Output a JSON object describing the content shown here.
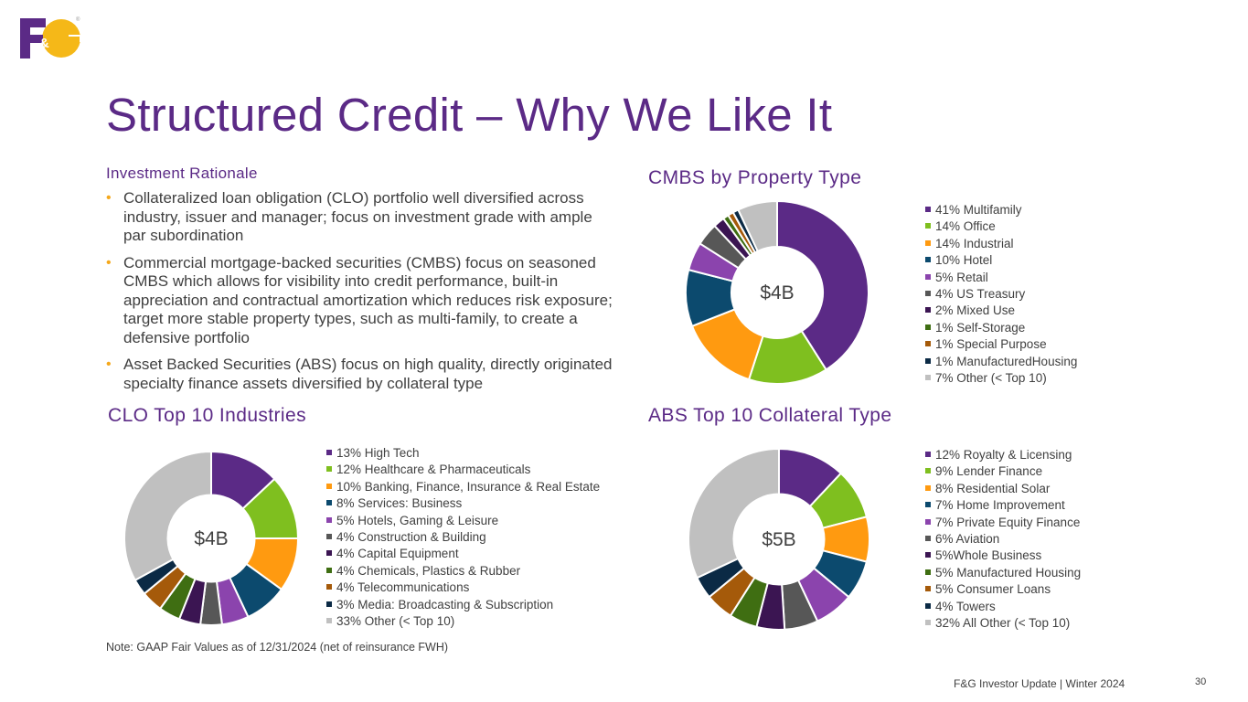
{
  "logo": {
    "text": "F&G",
    "registered": "®"
  },
  "title": "Structured Credit – Why We Like It",
  "rationale": {
    "heading": "Investment Rationale",
    "bullets": [
      "Collateralized loan obligation (CLO) portfolio well diversified across industry, issuer and manager; focus on investment grade with ample par subordination",
      "Commercial mortgage-backed securities (CMBS) focus on seasoned CMBS which allows for visibility into credit performance, built-in appreciation and contractual amortization which reduces risk exposure; target more stable property types, such as multi-family, to create a defensive portfolio",
      "Asset Backed Securities (ABS) focus on high quality, directly originated specialty finance assets diversified by collateral type"
    ]
  },
  "chart_data": [
    {
      "type": "pie",
      "title": "CMBS by Property Type",
      "center_label": "$4B",
      "legend_position": "right",
      "categories": [
        "Multifamily",
        "Office",
        "Industrial",
        "Hotel",
        "Retail",
        "US Treasury",
        "Mixed Use",
        "Self-Storage",
        "Special Purpose",
        "ManufacturedHousing",
        "Other (< Top 10)"
      ],
      "values": [
        41,
        14,
        14,
        10,
        5,
        4,
        2,
        1,
        1,
        1,
        7
      ],
      "legend_labels": [
        "41% Multifamily",
        "14% Office",
        "14% Industrial",
        "10% Hotel",
        "5% Retail",
        "4% US Treasury",
        "2% Mixed Use",
        "1% Self-Storage",
        "1% Special Purpose",
        "1% ManufacturedHousing",
        "7% Other (< Top 10)"
      ],
      "colors": [
        "#5b2a86",
        "#7fbf1f",
        "#ff9a10",
        "#0c4a6e",
        "#8b44ad",
        "#575757",
        "#3b1552",
        "#3f6e12",
        "#a55a0a",
        "#0b2a45",
        "#c0c0c0"
      ]
    },
    {
      "type": "pie",
      "title": "CLO Top 10 Industries",
      "center_label": "$4B",
      "legend_position": "right",
      "categories": [
        "High Tech",
        "Healthcare & Pharmaceuticals",
        "Banking, Finance, Insurance & Real Estate",
        "Services: Business",
        "Hotels, Gaming & Leisure",
        "Construction & Building",
        "Capital Equipment",
        "Chemicals, Plastics & Rubber",
        "Telecommunications",
        "Media: Broadcasting & Subscription",
        "Other (< Top 10)"
      ],
      "values": [
        13,
        12,
        10,
        8,
        5,
        4,
        4,
        4,
        4,
        3,
        33
      ],
      "legend_labels": [
        "13% High Tech",
        "12% Healthcare & Pharmaceuticals",
        "10% Banking, Finance, Insurance & Real Estate",
        "8% Services: Business",
        "5% Hotels, Gaming & Leisure",
        "4% Construction & Building",
        "4% Capital Equipment",
        "4% Chemicals, Plastics & Rubber",
        "4% Telecommunications",
        "3% Media: Broadcasting & Subscription",
        "33% Other (< Top 10)"
      ],
      "colors": [
        "#5b2a86",
        "#7fbf1f",
        "#ff9a10",
        "#0c4a6e",
        "#8b44ad",
        "#575757",
        "#3b1552",
        "#3f6e12",
        "#a55a0a",
        "#0b2a45",
        "#c0c0c0"
      ]
    },
    {
      "type": "pie",
      "title": "ABS Top 10 Collateral Type",
      "center_label": "$5B",
      "legend_position": "right",
      "categories": [
        "Royalty & Licensing",
        "Lender Finance",
        "Residential Solar",
        "Home Improvement",
        "Private Equity Finance",
        "Aviation",
        "Whole Business",
        "Manufactured Housing",
        "Consumer Loans",
        "Towers",
        "All Other (< Top 10)"
      ],
      "values": [
        12,
        9,
        8,
        7,
        7,
        6,
        5,
        5,
        5,
        4,
        32
      ],
      "legend_labels": [
        "12% Royalty & Licensing",
        "9% Lender Finance",
        "8% Residential Solar",
        "7% Home Improvement",
        "7% Private Equity Finance",
        "6% Aviation",
        "5%Whole Business",
        "5% Manufactured Housing",
        "5% Consumer Loans",
        "4% Towers",
        "32% All Other (< Top 10)"
      ],
      "colors": [
        "#5b2a86",
        "#7fbf1f",
        "#ff9a10",
        "#0c4a6e",
        "#8b44ad",
        "#575757",
        "#3b1552",
        "#3f6e12",
        "#a55a0a",
        "#0b2a45",
        "#c0c0c0"
      ]
    }
  ],
  "note": "Note: GAAP Fair Values as of 12/31/2024 (net of reinsurance FWH)",
  "footer": "F&G Investor Update | Winter 2024",
  "page_number": "30",
  "colors": {
    "brand_purple": "#5b2a86",
    "brand_yellow": "#f5b818",
    "bullet": "#f5a81c"
  }
}
